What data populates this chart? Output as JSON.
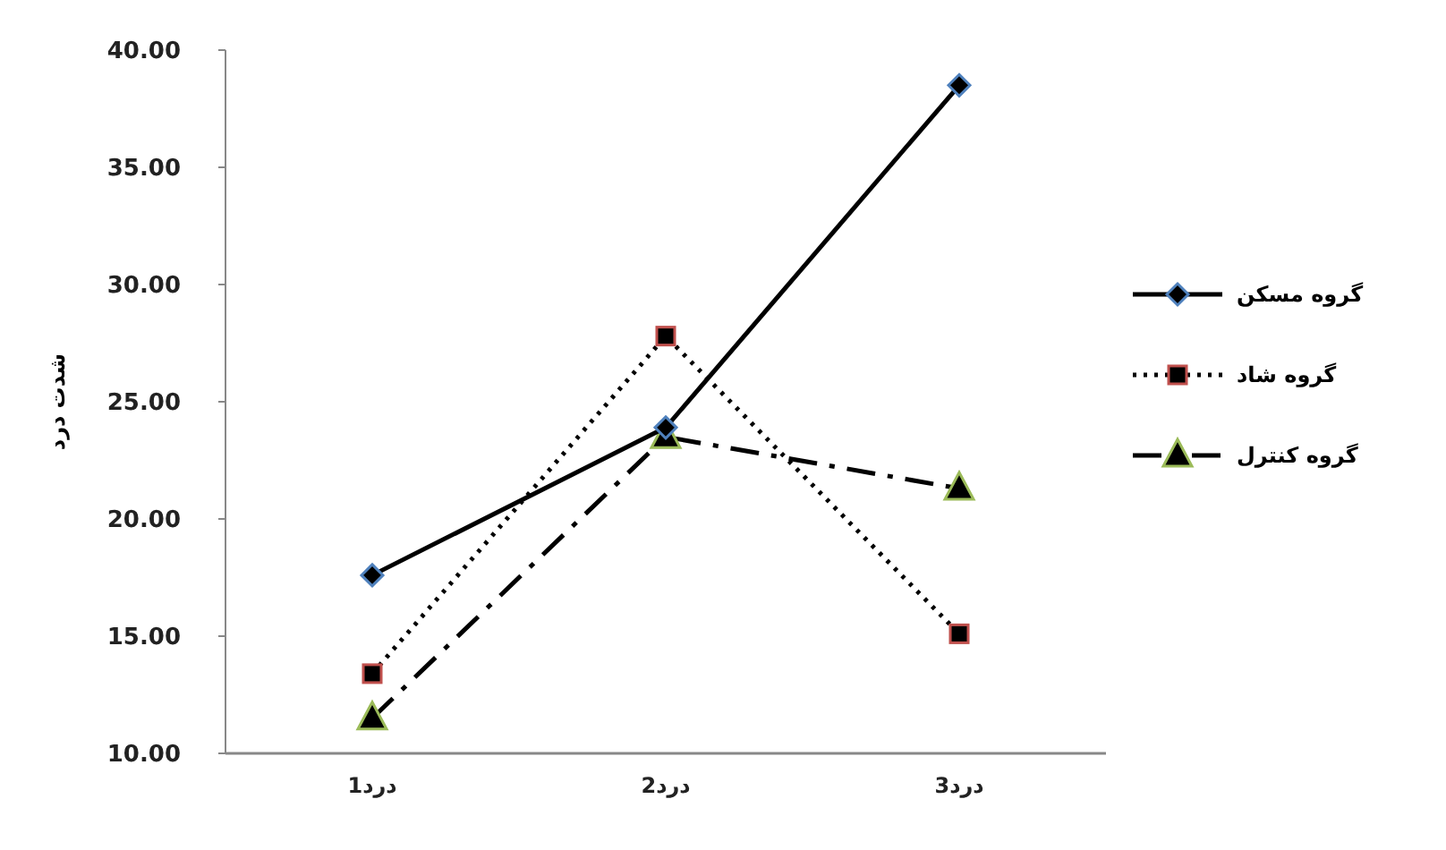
{
  "chart_data": {
    "type": "line",
    "ylabel": "شدت درد",
    "categories": [
      "درد1",
      "درد2",
      "درد3"
    ],
    "series": [
      {
        "name": "گروه مسکن",
        "color": "#000000",
        "values": [
          17.6,
          23.9,
          38.5
        ],
        "marker": "diamond",
        "line_style": "solid"
      },
      {
        "name": "گروه شاد",
        "color": "#000000",
        "values": [
          13.4,
          27.8,
          15.1
        ],
        "marker": "square",
        "line_style": "dotted"
      },
      {
        "name": "گروه کنترل",
        "color": "#000000",
        "values": [
          11.5,
          23.5,
          21.3
        ],
        "marker": "triangle",
        "line_style": "dashed"
      }
    ],
    "ylim": [
      10,
      40
    ],
    "yticks": [
      {
        "value": 10,
        "label": "10.00"
      },
      {
        "value": 15,
        "label": "15.00"
      },
      {
        "value": 20,
        "label": "20.00"
      },
      {
        "value": 25,
        "label": "25.00"
      },
      {
        "value": 30,
        "label": "30.00"
      },
      {
        "value": 35,
        "label": "35.00"
      },
      {
        "value": 40,
        "label": "40.00"
      }
    ],
    "grid": false,
    "legend": "right"
  }
}
